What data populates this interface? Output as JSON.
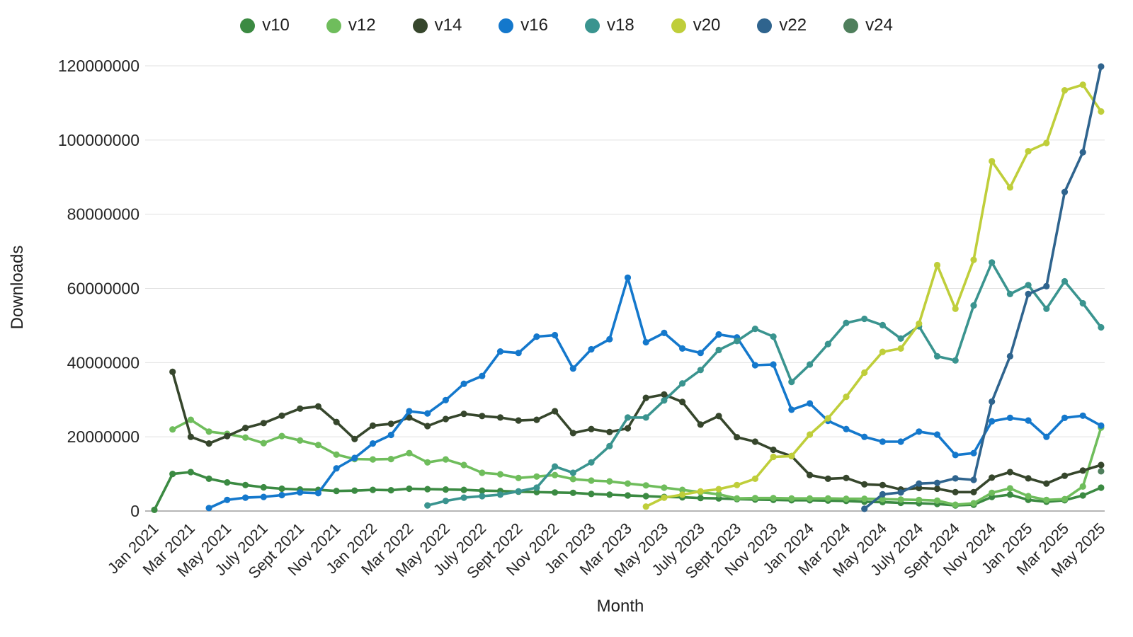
{
  "chart_data": {
    "type": "line",
    "title": "",
    "xlabel": "Month",
    "ylabel": "Downloads",
    "legend_position": "top",
    "grid": "horizontal",
    "ylim": [
      0,
      120000000
    ],
    "y_ticks": [
      0,
      20000000,
      40000000,
      60000000,
      80000000,
      100000000,
      120000000
    ],
    "x": [
      "Jan 2021",
      "Feb 2021",
      "Mar 2021",
      "Apr 2021",
      "May 2021",
      "Jun 2021",
      "Jul 2021",
      "Aug 2021",
      "Sep 2021",
      "Oct 2021",
      "Nov 2021",
      "Dec 2021",
      "Jan 2022",
      "Feb 2022",
      "Mar 2022",
      "Apr 2022",
      "May 2022",
      "Jun 2022",
      "Jul 2022",
      "Aug 2022",
      "Sep 2022",
      "Oct 2022",
      "Nov 2022",
      "Dec 2022",
      "Jan 2023",
      "Feb 2023",
      "Mar 2023",
      "Apr 2023",
      "May 2023",
      "Jun 2023",
      "Jul 2023",
      "Aug 2023",
      "Sep 2023",
      "Oct 2023",
      "Nov 2023",
      "Dec 2023",
      "Jan 2024",
      "Feb 2024",
      "Mar 2024",
      "Apr 2024",
      "May 2024",
      "Jun 2024",
      "Jul 2024",
      "Aug 2024",
      "Sep 2024",
      "Oct 2024",
      "Nov 2024",
      "Dec 2024",
      "Jan 2025",
      "Feb 2025",
      "Mar 2025",
      "Apr 2025",
      "May 2025"
    ],
    "x_tick_labels": [
      "Jan 2021",
      "Mar 2021",
      "May 2021",
      "July 2021",
      "Sept 2021",
      "Nov 2021",
      "Jan 2022",
      "Mar 2022",
      "May 2022",
      "July 2022",
      "Sept 2022",
      "Nov 2022",
      "Jan 2023",
      "Mar 2023",
      "May 2023",
      "July 2023",
      "Sept 2023",
      "Nov 2023",
      "Jan 2024",
      "Mar 2024",
      "May 2024",
      "July 2024",
      "Sept 2024",
      "Nov 2024",
      "Jan 2025",
      "Mar 2025",
      "May 2025"
    ],
    "series": [
      {
        "name": "v10",
        "color": "#3b8a42",
        "values": [
          300000,
          10000000,
          10500000,
          8700000,
          7700000,
          7000000,
          6400000,
          6000000,
          5800000,
          5700000,
          5400000,
          5500000,
          5700000,
          5600000,
          6000000,
          5900000,
          5800000,
          5700000,
          5500000,
          5400000,
          5200000,
          5100000,
          5000000,
          4900000,
          4600000,
          4400000,
          4200000,
          4000000,
          3800000,
          3700000,
          3500000,
          3400000,
          3200000,
          3100000,
          3000000,
          2900000,
          2900000,
          2800000,
          2700000,
          2500000,
          2400000,
          2200000,
          2100000,
          1900000,
          1500000,
          1700000,
          3800000,
          4400000,
          3000000,
          2500000,
          2900000,
          4200000,
          6300000
        ]
      },
      {
        "name": "v12",
        "color": "#6fbd5c",
        "values": [
          null,
          22000000,
          24600000,
          21400000,
          20800000,
          19800000,
          18300000,
          20200000,
          19000000,
          17800000,
          15200000,
          14000000,
          13900000,
          14000000,
          15600000,
          13100000,
          13900000,
          12400000,
          10300000,
          9900000,
          8900000,
          9300000,
          9700000,
          8600000,
          8200000,
          8000000,
          7400000,
          6900000,
          6300000,
          5700000,
          5100000,
          4500000,
          3400000,
          3500000,
          3500000,
          3400000,
          3400000,
          3400000,
          3300000,
          3300000,
          3200000,
          3100000,
          3000000,
          2800000,
          1700000,
          2100000,
          4900000,
          6100000,
          4000000,
          3000000,
          3200000,
          6600000,
          22500000
        ]
      },
      {
        "name": "v14",
        "color": "#36462c",
        "values": [
          null,
          37500000,
          20000000,
          18200000,
          20200000,
          22400000,
          23700000,
          25700000,
          27600000,
          28200000,
          24000000,
          19400000,
          23000000,
          23500000,
          25200000,
          22900000,
          24800000,
          26200000,
          25600000,
          25200000,
          24400000,
          24600000,
          26900000,
          21000000,
          22100000,
          21300000,
          22300000,
          30500000,
          31400000,
          29400000,
          23300000,
          25600000,
          19900000,
          18700000,
          16500000,
          14800000,
          9700000,
          8700000,
          8900000,
          7200000,
          7000000,
          5800000,
          6200000,
          6000000,
          5100000,
          5100000,
          9000000,
          10500000,
          8800000,
          7400000,
          9500000,
          10900000,
          12400000
        ]
      },
      {
        "name": "v16",
        "color": "#1478cc",
        "values": [
          null,
          null,
          null,
          800000,
          3000000,
          3600000,
          3800000,
          4300000,
          5000000,
          4800000,
          11500000,
          14300000,
          18200000,
          20500000,
          26900000,
          26300000,
          29900000,
          34300000,
          36400000,
          43000000,
          42600000,
          47000000,
          47400000,
          38400000,
          43600000,
          46300000,
          62900000,
          45500000,
          48000000,
          43800000,
          42600000,
          47600000,
          46800000,
          39300000,
          39500000,
          27300000,
          29000000,
          24300000,
          22100000,
          20000000,
          18700000,
          18700000,
          21400000,
          20600000,
          15100000,
          15600000,
          24200000,
          25100000,
          24400000,
          20000000,
          25100000,
          25700000,
          23000000
        ]
      },
      {
        "name": "v18",
        "color": "#3a948f",
        "values": [
          null,
          null,
          null,
          null,
          null,
          null,
          null,
          null,
          null,
          null,
          null,
          null,
          null,
          null,
          null,
          1500000,
          2700000,
          3600000,
          4000000,
          4400000,
          5300000,
          6300000,
          12000000,
          10300000,
          13100000,
          17500000,
          25200000,
          25200000,
          29800000,
          34400000,
          38000000,
          43400000,
          45800000,
          49100000,
          47000000,
          34800000,
          39500000,
          45000000,
          50700000,
          51800000,
          50100000,
          46500000,
          49800000,
          41700000,
          40600000,
          55400000,
          67000000,
          58500000,
          60900000,
          54500000,
          61900000,
          56000000,
          49500000
        ]
      },
      {
        "name": "v20",
        "color": "#bfce3a",
        "values": [
          null,
          null,
          null,
          null,
          null,
          null,
          null,
          null,
          null,
          null,
          null,
          null,
          null,
          null,
          null,
          null,
          null,
          null,
          null,
          null,
          null,
          null,
          null,
          null,
          null,
          null,
          null,
          1200000,
          3600000,
          4400000,
          5300000,
          5900000,
          7000000,
          8700000,
          14600000,
          14800000,
          20600000,
          25000000,
          30800000,
          37300000,
          42900000,
          43800000,
          50500000,
          66300000,
          54500000,
          67700000,
          94300000,
          87200000,
          97000000,
          99200000,
          113400000,
          114900000,
          107700000
        ]
      },
      {
        "name": "v22",
        "color": "#2f648e",
        "values": [
          null,
          null,
          null,
          null,
          null,
          null,
          null,
          null,
          null,
          null,
          null,
          null,
          null,
          null,
          null,
          null,
          null,
          null,
          null,
          null,
          null,
          null,
          null,
          null,
          null,
          null,
          null,
          null,
          null,
          null,
          null,
          null,
          null,
          null,
          null,
          null,
          null,
          null,
          null,
          600000,
          4500000,
          5000000,
          7400000,
          7600000,
          8800000,
          8400000,
          29500000,
          41700000,
          58500000,
          60600000,
          86000000,
          96700000,
          119800000
        ]
      },
      {
        "name": "v24",
        "color": "#4f7f5c",
        "values": [
          null,
          null,
          null,
          null,
          null,
          null,
          null,
          null,
          null,
          null,
          null,
          null,
          null,
          null,
          null,
          null,
          null,
          null,
          null,
          null,
          null,
          null,
          null,
          null,
          null,
          null,
          null,
          null,
          null,
          null,
          null,
          null,
          null,
          null,
          null,
          null,
          null,
          null,
          null,
          null,
          null,
          null,
          null,
          null,
          null,
          null,
          null,
          null,
          null,
          null,
          null,
          null,
          10700000
        ]
      }
    ]
  }
}
